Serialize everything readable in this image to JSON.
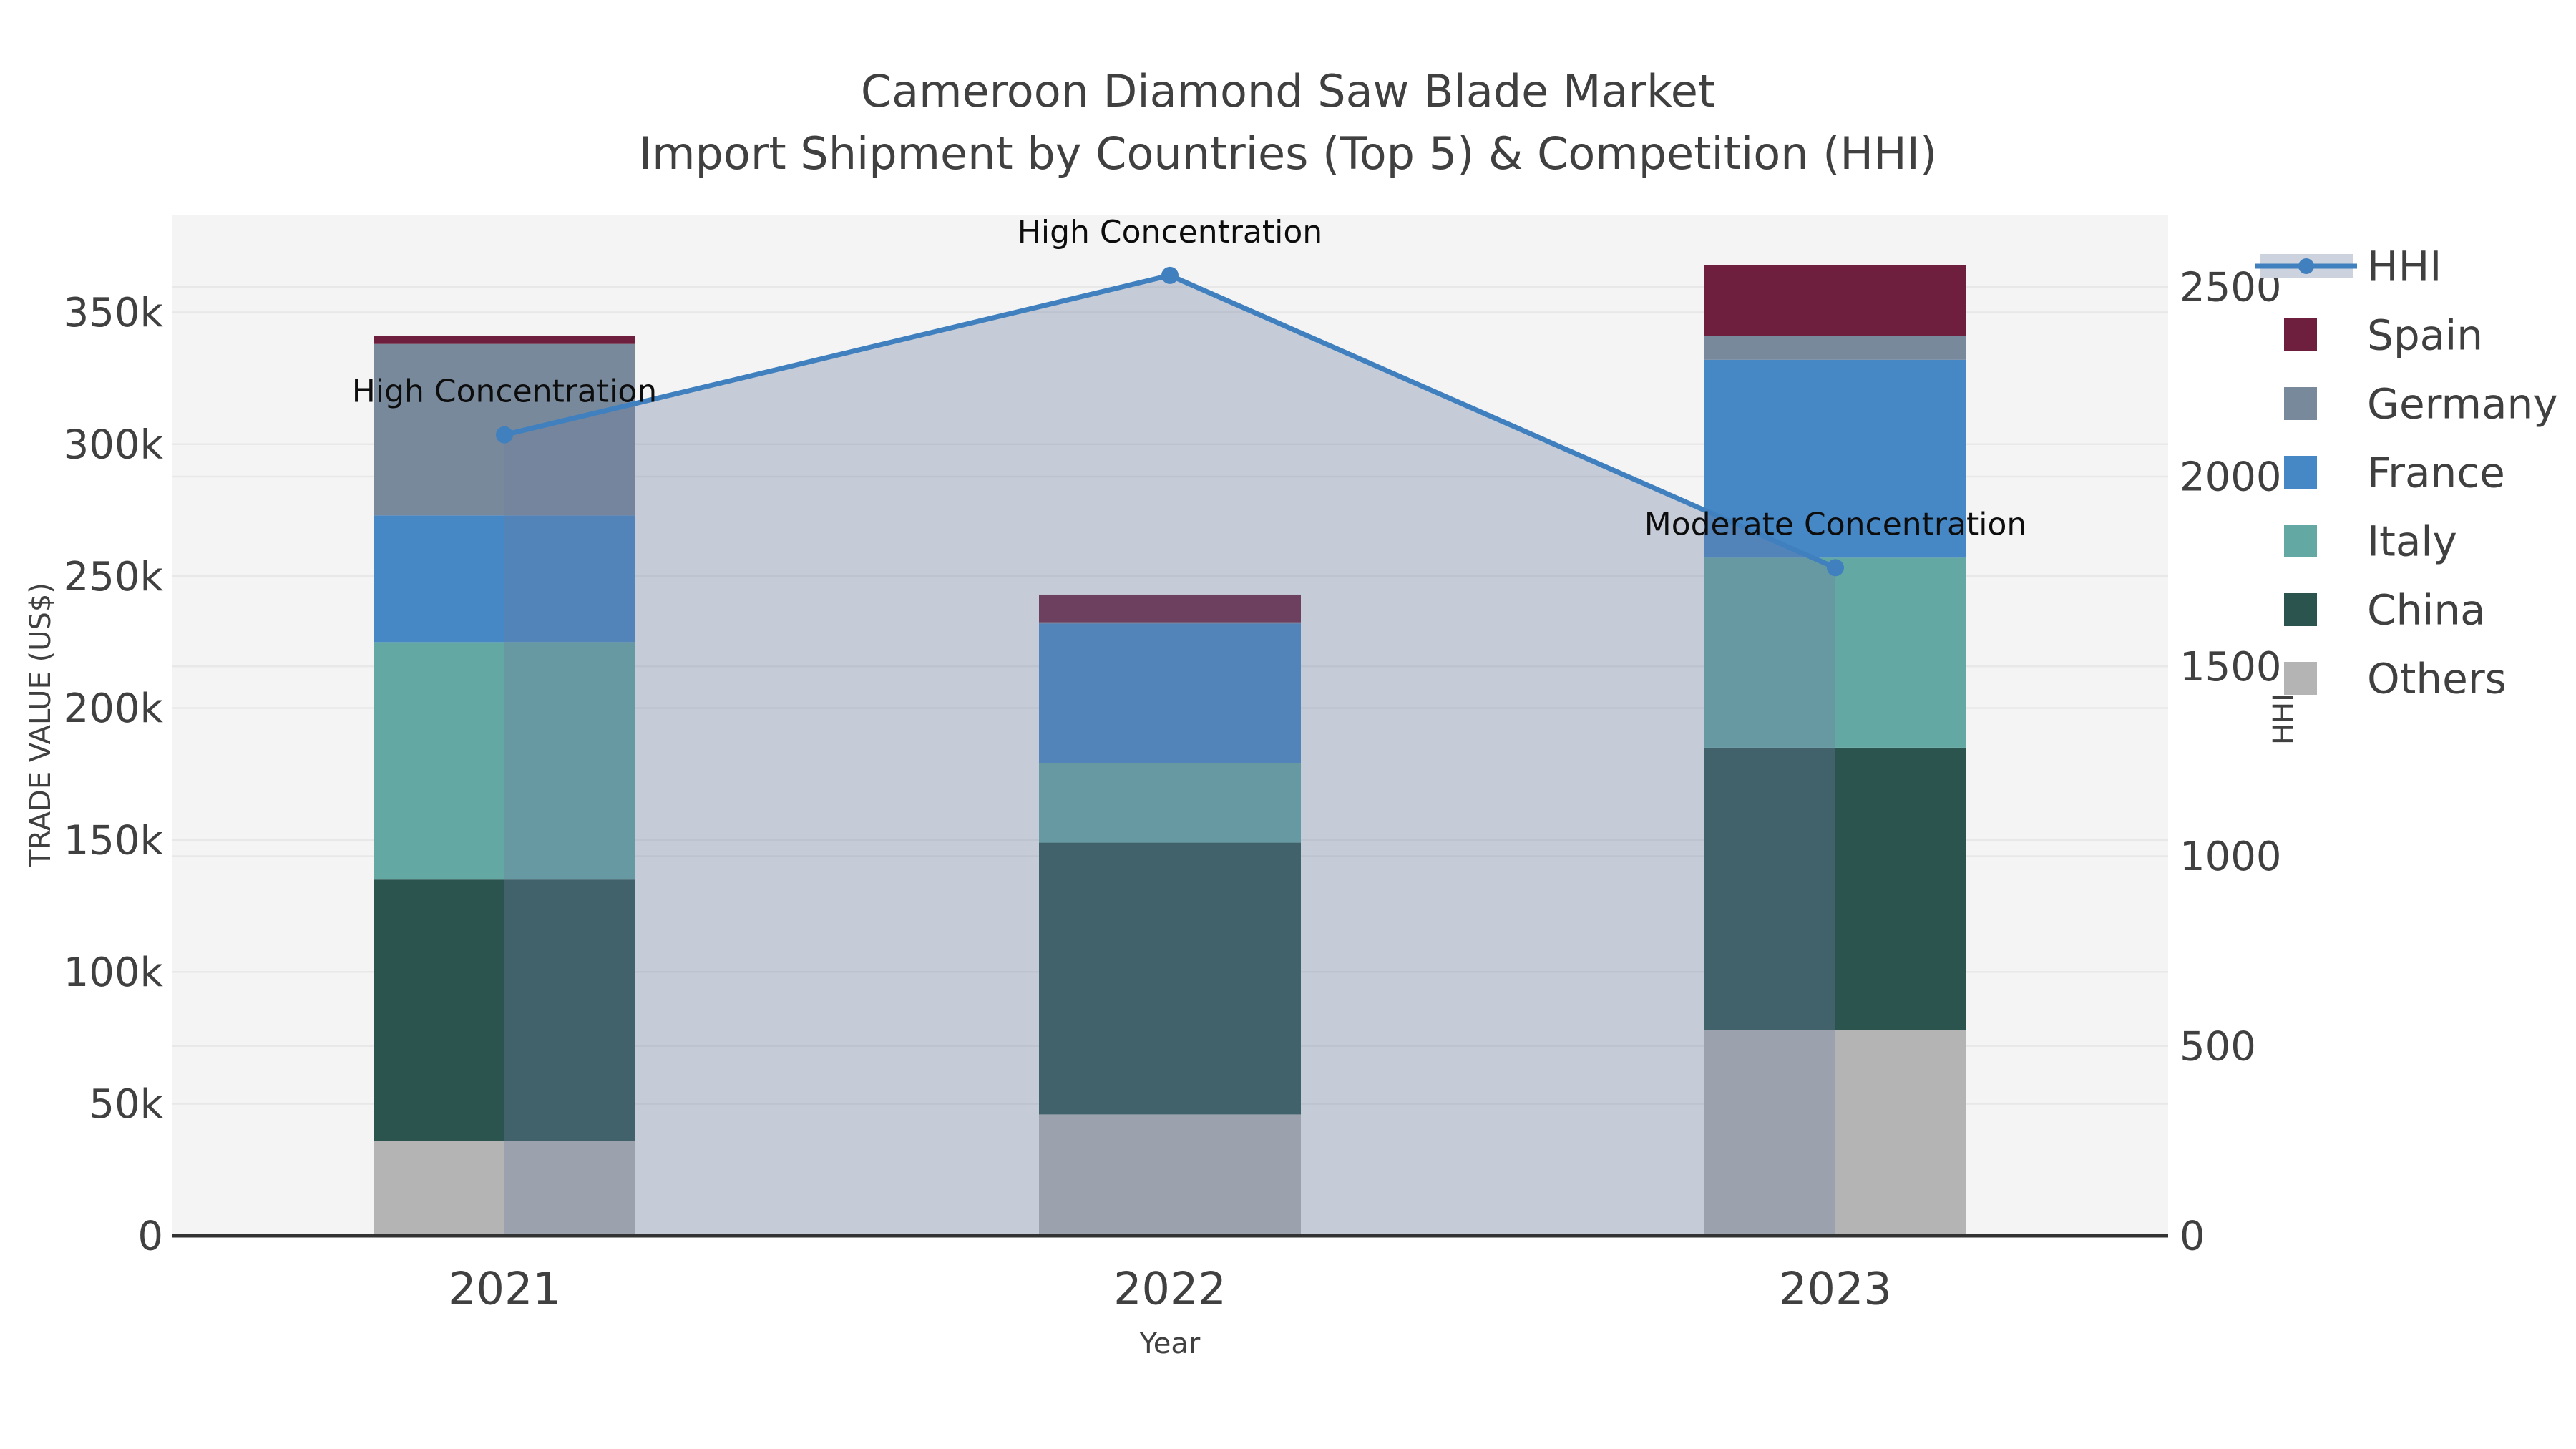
{
  "title": {
    "line1": "Cameroon Diamond Saw Blade Market",
    "line2": "Import Shipment by Countries (Top 5) & Competition (HHI)"
  },
  "colors": {
    "background": "#ffffff",
    "plot_background": "#f4f4f4",
    "grid": "#e8e8e8",
    "axis_line": "#333333",
    "text": "#404040",
    "annotation_text": "#0d0d0d",
    "hhi_line": "#4080bf",
    "hhi_area": "rgba(110,127,161,0.35)",
    "spain": "#6e1f3e",
    "germany": "#78899c",
    "france": "#4687c6",
    "italy": "#64a8a4",
    "china": "#2c544f",
    "others": "#b4b4b4"
  },
  "legend": [
    {
      "label": "HHI",
      "type": "line",
      "color": "#4080bf",
      "fill": "#ccd2de"
    },
    {
      "label": "Spain",
      "type": "box",
      "color": "#6e1f3e"
    },
    {
      "label": "Germany",
      "type": "box",
      "color": "#78899c"
    },
    {
      "label": "France",
      "type": "box",
      "color": "#4687c6"
    },
    {
      "label": "Italy",
      "type": "box",
      "color": "#64a8a4"
    },
    {
      "label": "China",
      "type": "box",
      "color": "#2c544f"
    },
    {
      "label": "Others",
      "type": "box",
      "color": "#b4b4b4"
    }
  ],
  "chart_data": {
    "type": "stacked-bar+line-dual-axis",
    "title": "Cameroon Diamond Saw Blade Market — Import Shipment by Countries (Top 5) & Competition (HHI)",
    "categories": [
      "2021",
      "2022",
      "2023"
    ],
    "x_axis": {
      "label": "Year"
    },
    "left_axis": {
      "label": "TRADE VALUE (US$)",
      "tick_labels": [
        "0",
        "50k",
        "100k",
        "150k",
        "200k",
        "250k",
        "300k",
        "350k"
      ],
      "tick_values": [
        0,
        50000,
        100000,
        150000,
        200000,
        250000,
        300000,
        350000
      ],
      "range": [
        0,
        387000
      ]
    },
    "right_axis": {
      "label": "HHI",
      "tick_labels": [
        "0",
        "500",
        "1000",
        "1500",
        "2000",
        "2500"
      ],
      "tick_values": [
        0,
        500,
        1000,
        1500,
        2000,
        2500
      ],
      "range": [
        0,
        2690
      ]
    },
    "series": [
      {
        "name": "Others",
        "values": [
          36000,
          46000,
          78000
        ],
        "color": "#b4b4b4"
      },
      {
        "name": "China",
        "values": [
          99000,
          103000,
          107000
        ],
        "color": "#2c544f"
      },
      {
        "name": "Italy",
        "values": [
          90000,
          30000,
          72000
        ],
        "color": "#64a8a4"
      },
      {
        "name": "France",
        "values": [
          48000,
          53000,
          75000
        ],
        "color": "#4687c6"
      },
      {
        "name": "Germany",
        "values": [
          65000,
          500,
          9000
        ],
        "color": "#78899c"
      },
      {
        "name": "Spain",
        "values": [
          3000,
          10500,
          27000
        ],
        "color": "#6e1f3e"
      }
    ],
    "bar_totals": [
      341000,
      243000,
      368000
    ],
    "line_series": {
      "name": "HHI",
      "axis": "right",
      "values": [
        2110,
        2530,
        1760
      ],
      "color": "#4080bf",
      "area_fill": "rgba(110,127,161,0.35)",
      "marker": "circle"
    },
    "annotations": [
      {
        "category": "2021",
        "text": "High Concentration"
      },
      {
        "category": "2022",
        "text": "High Concentration"
      },
      {
        "category": "2023",
        "text": "Moderate Concentration"
      }
    ],
    "legend_position": "right",
    "grid": true
  }
}
